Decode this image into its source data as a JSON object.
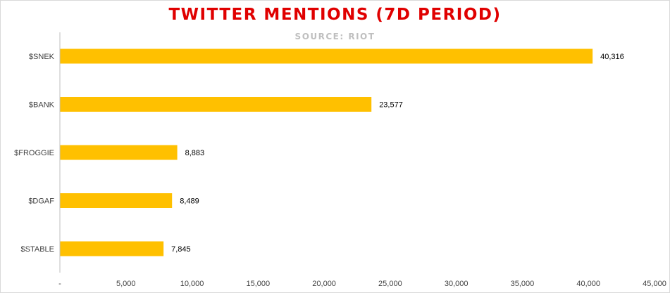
{
  "colors": {
    "bar": "#FFC000",
    "title": "#E00000",
    "subtitle": "#BFBFBF",
    "axis": "#BFBFBF"
  },
  "chart_data": {
    "type": "bar",
    "orientation": "horizontal",
    "title": "TWITTER MENTIONS (7D PERIOD)",
    "subtitle": "SOURCE: RIOT",
    "categories": [
      "$SNEK",
      "$BANK",
      "$FROGGIE",
      "$DGAF",
      "$STABLE"
    ],
    "values": [
      40316,
      23577,
      8883,
      8489,
      7845
    ],
    "value_labels": [
      "40,316",
      "23,577",
      "8,883",
      "8,489",
      "7,845"
    ],
    "x_ticks": [
      0,
      5000,
      10000,
      15000,
      20000,
      25000,
      30000,
      35000,
      40000,
      45000
    ],
    "x_tick_labels": [
      "-",
      "5,000",
      "10,000",
      "15,000",
      "20,000",
      "25,000",
      "30,000",
      "35,000",
      "40,000",
      "45,000"
    ],
    "xlim": [
      0,
      45000
    ],
    "grid": false,
    "legend": "none"
  }
}
